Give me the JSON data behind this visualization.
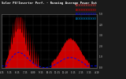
{
  "title": "Solar PV/Inverter Perf. - Running Average Power Out",
  "background_color": "#1a1a1a",
  "plot_bg_color": "#000000",
  "grid_color": "#444444",
  "bar_color": "#cc0000",
  "avg_color": "#0000ee",
  "legend_items": [
    "XXXXXXXXXXXXXXXX",
    "XXXXXXXXXXXXXXXX",
    "XXXXXXXXXXXXXXXX",
    "XXXXXXXXXXXXXXXX"
  ],
  "ylim_max": 1.0,
  "num_points": 300
}
